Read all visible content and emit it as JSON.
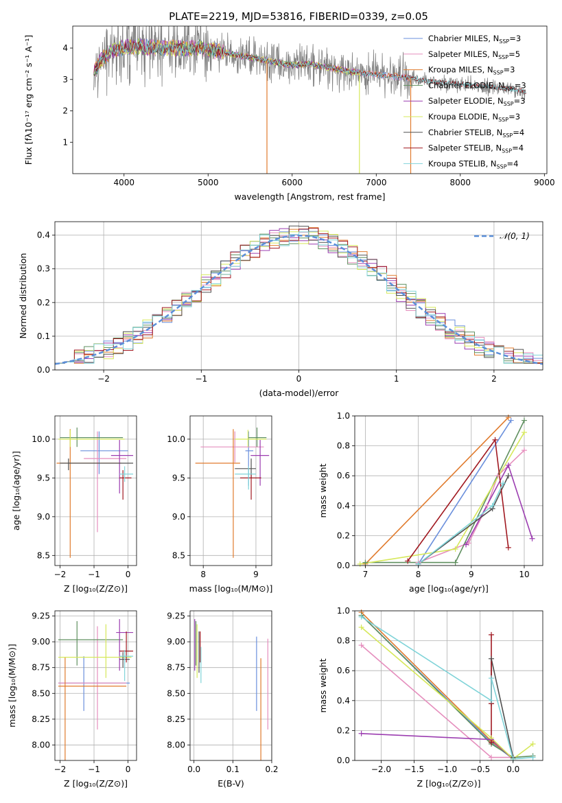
{
  "figure": {
    "title": "PLATE=2219, MJD=53816, FIBERID=0339, z=0.05"
  },
  "colors": {
    "Chabrier MILES": "#6a8fdc",
    "Salpeter MILES": "#e58ebd",
    "Kroupa MILES": "#e07a2c",
    "Chabrier ELODIE": "#5f8f5f",
    "Salpeter ELODIE": "#9b3cb0",
    "Kroupa ELODIE": "#d6e85a",
    "Chabrier STELIB": "#505050",
    "Salpeter STELIB": "#a01820",
    "Kroupa STELIB": "#7fd3d8",
    "data": "#808080"
  },
  "chart_data": [
    {
      "type": "line",
      "panel": "spectrum",
      "xlabel": "wavelength [Angstrom, rest frame]",
      "ylabel": "Flux [fλ10⁻¹⁷ erg cm⁻² s⁻¹ A⁻¹]",
      "xlim": [
        3390,
        9030
      ],
      "ylim": [
        0.0,
        4.7
      ],
      "xticks": [
        4000,
        5000,
        6000,
        7000,
        8000,
        9000
      ],
      "yticks": [
        1,
        2,
        3,
        4
      ],
      "grid": false,
      "legend_placement": "upper right",
      "legend": [
        {
          "name": "Chabrier MILES",
          "nssp": "3"
        },
        {
          "name": "Salpeter MILES",
          "nssp": "5"
        },
        {
          "name": "Kroupa MILES",
          "nssp": "3"
        },
        {
          "name": "Chabrier ELODIE",
          "nssp": "3"
        },
        {
          "name": "Salpeter ELODIE",
          "nssp": "3"
        },
        {
          "name": "Kroupa ELODIE",
          "nssp": "3"
        },
        {
          "name": "Chabrier STELIB",
          "nssp": "4"
        },
        {
          "name": "Salpeter STELIB",
          "nssp": "4"
        },
        {
          "name": "Kroupa STELIB",
          "nssp": "4"
        }
      ],
      "continuum": {
        "x": [
          3650,
          3700,
          3800,
          3900,
          4000,
          4100,
          4200,
          4300,
          4500,
          4700,
          4900,
          5000,
          5200,
          5400,
          5600,
          5800,
          6000,
          6200,
          6400,
          6600,
          6800,
          7000,
          7200,
          7400,
          7600,
          7800,
          8000,
          8200,
          8400,
          8600,
          8800
        ],
        "y": [
          3.25,
          3.55,
          3.8,
          3.95,
          4.0,
          4.05,
          4.05,
          4.0,
          4.0,
          4.0,
          4.0,
          3.95,
          3.85,
          3.75,
          3.65,
          3.55,
          3.45,
          3.5,
          3.4,
          3.3,
          3.2,
          3.15,
          3.1,
          3.05,
          2.95,
          2.9,
          2.85,
          2.8,
          2.75,
          2.7,
          2.6
        ]
      },
      "data_extent": [
        3640,
        8770
      ],
      "model_extents": {
        "MILES": [
          3640,
          7410
        ],
        "ELODIE": [
          3640,
          6800
        ],
        "STELIB": [
          3640,
          8780
        ]
      }
    },
    {
      "type": "bar",
      "panel": "residual histogram",
      "xlabel": "(data-model)/error",
      "ylabel": "Normed distribution",
      "xlim": [
        -2.5,
        2.5
      ],
      "ylim": [
        0.0,
        0.44
      ],
      "xticks": [
        -2,
        -1,
        0,
        1,
        2
      ],
      "yticks": [
        0.0,
        0.1,
        0.2,
        0.3,
        0.4
      ],
      "grid": true,
      "legend_placement": "upper right",
      "legend_label": "𝒩(0, 1)",
      "bin_width": 0.1,
      "gaussian": {
        "mu": 0,
        "sigma": 1
      }
    },
    {
      "type": "scatter",
      "panel": "age vs Z",
      "xlabel": "Z [log₁₀(Z/Z⊙)]",
      "ylabel": "age  [log₁₀(age/yr)]",
      "xlim": [
        -2.15,
        0.25
      ],
      "ylim": [
        8.37,
        10.3
      ],
      "xticks": [
        -2,
        -1,
        0
      ],
      "yticks": [
        8.5,
        9.0,
        9.5,
        10.0
      ],
      "points": [
        {
          "s": "Chabrier MILES",
          "x": -0.85,
          "y": 9.85,
          "xe": [
            -1.4,
            0.0
          ],
          "ye": [
            9.55,
            10.1
          ]
        },
        {
          "s": "Salpeter MILES",
          "x": -0.9,
          "y": 9.75,
          "xe": [
            -1.3,
            -0.05
          ],
          "ye": [
            8.8,
            10.1
          ]
        },
        {
          "s": "Kroupa MILES",
          "x": -1.7,
          "y": 9.69,
          "xe": [
            -2.1,
            -0.2
          ],
          "ye": [
            8.47,
            10.13
          ]
        },
        {
          "s": "Chabrier ELODIE",
          "x": -1.5,
          "y": 10.02,
          "xe": [
            -2.0,
            -0.15
          ],
          "ye": [
            9.9,
            10.15
          ]
        },
        {
          "s": "Salpeter ELODIE",
          "x": -0.25,
          "y": 9.79,
          "xe": [
            -0.5,
            0.15
          ],
          "ye": [
            9.3,
            9.99
          ]
        },
        {
          "s": "Kroupa ELODIE",
          "x": -1.7,
          "y": 10.0,
          "xe": [
            -2.05,
            -0.1
          ],
          "ye": [
            9.9,
            10.12
          ]
        },
        {
          "s": "Chabrier STELIB",
          "x": -1.75,
          "y": 9.69,
          "xe": [
            -2.0,
            0.15
          ],
          "ye": [
            9.6,
            9.75
          ]
        },
        {
          "s": "Salpeter STELIB",
          "x": -0.15,
          "y": 9.5,
          "xe": [
            -0.25,
            0.1
          ],
          "ye": [
            9.22,
            9.6
          ]
        },
        {
          "s": "Kroupa STELIB",
          "x": -0.1,
          "y": 9.55,
          "xe": [
            -0.25,
            0.15
          ],
          "ye": [
            9.45,
            9.65
          ]
        }
      ]
    },
    {
      "type": "scatter",
      "panel": "age vs mass",
      "xlabel": "mass [log₁₀(M/M⊙)]",
      "ylabel": "",
      "xlim": [
        7.75,
        9.3
      ],
      "ylim": [
        8.37,
        10.3
      ],
      "xticks": [
        8,
        9
      ],
      "yticks": [
        8.5,
        9.0,
        9.5,
        10.0
      ],
      "points": [
        {
          "s": "Chabrier MILES",
          "x": 8.86,
          "y": 9.85,
          "xe": [
            8.8,
            8.95
          ],
          "ye": [
            9.4,
            10.1
          ]
        },
        {
          "s": "Salpeter MILES",
          "x": 8.6,
          "y": 9.9,
          "xe": [
            7.95,
            9.15
          ],
          "ye": [
            9.7,
            10.1
          ]
        },
        {
          "s": "Kroupa MILES",
          "x": 8.57,
          "y": 9.69,
          "xe": [
            7.85,
            8.7
          ],
          "ye": [
            8.47,
            10.13
          ]
        },
        {
          "s": "Chabrier ELODIE",
          "x": 9.02,
          "y": 10.02,
          "xe": [
            8.85,
            9.2
          ],
          "ye": [
            9.9,
            10.15
          ]
        },
        {
          "s": "Salpeter ELODIE",
          "x": 9.08,
          "y": 9.79,
          "xe": [
            8.9,
            9.25
          ],
          "ye": [
            9.4,
            9.99
          ]
        },
        {
          "s": "Kroupa ELODIE",
          "x": 8.85,
          "y": 10.0,
          "xe": [
            8.6,
            9.2
          ],
          "ye": [
            9.9,
            10.12
          ]
        },
        {
          "s": "Chabrier STELIB",
          "x": 8.91,
          "y": 9.62,
          "xe": [
            8.6,
            9.0
          ],
          "ye": [
            9.5,
            9.75
          ]
        },
        {
          "s": "Salpeter STELIB",
          "x": 8.91,
          "y": 9.5,
          "xe": [
            8.7,
            9.1
          ],
          "ye": [
            9.22,
            9.55
          ]
        },
        {
          "s": "Kroupa STELIB",
          "x": 8.86,
          "y": 9.55,
          "xe": [
            8.6,
            9.0
          ],
          "ye": [
            9.35,
            9.65
          ]
        }
      ]
    },
    {
      "type": "line",
      "panel": "mass weight vs age",
      "xlabel": "age  [log₁₀(age/yr)]",
      "ylabel": "mass weight",
      "xlim": [
        6.8,
        10.35
      ],
      "ylim": [
        0.0,
        1.0
      ],
      "xticks": [
        7,
        8,
        9,
        10
      ],
      "yticks": [
        0.0,
        0.2,
        0.4,
        0.6,
        0.8,
        1.0
      ],
      "grid": true,
      "series": [
        {
          "name": "Chabrier MILES",
          "x": [
            8.0,
            9.75
          ],
          "y": [
            0.01,
            0.97
          ]
        },
        {
          "name": "Salpeter MILES",
          "x": [
            8.0,
            8.95,
            9.3,
            9.5,
            10.0
          ],
          "y": [
            0.02,
            0.15,
            0.4,
            0.6,
            0.77
          ]
        },
        {
          "name": "Kroupa MILES",
          "x": [
            7.0,
            9.7
          ],
          "y": [
            0.01,
            0.99
          ]
        },
        {
          "name": "Chabrier ELODIE",
          "x": [
            7.0,
            8.7,
            10.0
          ],
          "y": [
            0.02,
            0.02,
            0.97
          ]
        },
        {
          "name": "Salpeter ELODIE",
          "x": [
            8.9,
            9.7,
            10.15
          ],
          "y": [
            0.14,
            0.67,
            0.18
          ]
        },
        {
          "name": "Kroupa ELODIE",
          "x": [
            6.9,
            8.7,
            10.0
          ],
          "y": [
            0.01,
            0.11,
            0.89
          ]
        },
        {
          "name": "Chabrier STELIB",
          "x": [
            8.0,
            9.4,
            9.7
          ],
          "y": [
            0.01,
            0.38,
            0.6
          ]
        },
        {
          "name": "Salpeter STELIB",
          "x": [
            7.8,
            9.45,
            9.7
          ],
          "y": [
            0.03,
            0.84,
            0.12
          ]
        },
        {
          "name": "Kroupa STELIB",
          "x": [
            8.0,
            9.4,
            9.6
          ],
          "y": [
            0.01,
            0.4,
            0.55
          ]
        }
      ]
    },
    {
      "type": "scatter",
      "panel": "mass vs Z",
      "xlabel": "Z [log₁₀(Z/Z⊙)]",
      "ylabel": "mass [log₁₀(M/M⊙)]",
      "xlim": [
        -2.15,
        0.25
      ],
      "ylim": [
        7.85,
        9.3
      ],
      "xticks": [
        -2,
        -1,
        0
      ],
      "yticks": [
        8.0,
        8.25,
        8.5,
        8.75,
        9.0,
        9.25
      ],
      "points": [
        {
          "s": "Chabrier MILES",
          "x": -1.3,
          "y": 8.6,
          "xe": [
            -2.05,
            0.05
          ],
          "ye": [
            8.33,
            8.86
          ]
        },
        {
          "s": "Salpeter MILES",
          "x": -0.9,
          "y": 8.6,
          "xe": [
            -2.05,
            -0.05
          ],
          "ye": [
            8.15,
            9.15
          ]
        },
        {
          "s": "Kroupa MILES",
          "x": -1.85,
          "y": 8.57,
          "xe": [
            -2.05,
            -0.05
          ],
          "ye": [
            7.85,
            8.85
          ]
        },
        {
          "s": "Chabrier ELODIE",
          "x": -1.5,
          "y": 9.02,
          "xe": [
            -2.05,
            -0.15
          ],
          "ye": [
            8.77,
            9.2
          ]
        },
        {
          "s": "Salpeter ELODIE",
          "x": -0.25,
          "y": 9.09,
          "xe": [
            -0.35,
            0.15
          ],
          "ye": [
            8.72,
            9.22
          ]
        },
        {
          "s": "Kroupa ELODIE",
          "x": -0.65,
          "y": 8.85,
          "xe": [
            -2.05,
            0.1
          ],
          "ye": [
            8.65,
            9.17
          ]
        },
        {
          "s": "Chabrier STELIB",
          "x": -0.15,
          "y": 8.83,
          "xe": [
            -0.25,
            0.05
          ],
          "ye": [
            8.75,
            8.9
          ]
        },
        {
          "s": "Salpeter STELIB",
          "x": -0.05,
          "y": 8.91,
          "xe": [
            -0.25,
            0.15
          ],
          "ye": [
            8.8,
            9.1
          ]
        },
        {
          "s": "Kroupa STELIB",
          "x": -0.1,
          "y": 8.86,
          "xe": [
            -0.25,
            0.15
          ],
          "ye": [
            8.62,
            8.92
          ]
        }
      ]
    },
    {
      "type": "scatter",
      "panel": "mass vs E(B-V)",
      "xlabel": "E(B-V)",
      "ylabel": "",
      "xlim": [
        -0.01,
        0.2
      ],
      "ylim": [
        7.85,
        9.3
      ],
      "xticks": [
        0.0,
        0.1,
        0.2
      ],
      "yticks": [
        8.0,
        8.25,
        8.5,
        8.75,
        9.0,
        9.25
      ],
      "points": [
        {
          "s": "Chabrier MILES",
          "x": 0.161,
          "y": 8.6,
          "ye": [
            8.33,
            9.05
          ]
        },
        {
          "s": "Salpeter MILES",
          "x": 0.19,
          "y": 8.6,
          "ye": [
            8.15,
            9.03
          ]
        },
        {
          "s": "Kroupa MILES",
          "x": 0.172,
          "y": 8.57,
          "ye": [
            7.85,
            8.84
          ]
        },
        {
          "s": "Chabrier ELODIE",
          "x": 0.005,
          "y": 9.02,
          "ye": [
            8.77,
            9.2
          ]
        },
        {
          "s": "Salpeter ELODIE",
          "x": 0.002,
          "y": 9.09,
          "ye": [
            8.72,
            9.22
          ]
        },
        {
          "s": "Kroupa ELODIE",
          "x": 0.008,
          "y": 8.85,
          "ye": [
            8.65,
            9.17
          ]
        },
        {
          "s": "Chabrier STELIB",
          "x": 0.013,
          "y": 8.83,
          "ye": [
            8.7,
            9.1
          ]
        },
        {
          "s": "Salpeter STELIB",
          "x": 0.016,
          "y": 8.91,
          "ye": [
            8.8,
            9.1
          ]
        },
        {
          "s": "Kroupa STELIB",
          "x": 0.018,
          "y": 8.86,
          "ye": [
            8.6,
            8.95
          ]
        }
      ]
    },
    {
      "type": "line",
      "panel": "mass weight vs Z",
      "xlabel": "Z [log₁₀(Z/Z⊙)]",
      "ylabel": "mass weight",
      "xlim": [
        -2.4,
        0.45
      ],
      "ylim": [
        0.0,
        1.0
      ],
      "xticks": [
        -2.0,
        -1.5,
        -1.0,
        -0.5,
        0.0
      ],
      "yticks": [
        0.0,
        0.2,
        0.4,
        0.6,
        0.8,
        1.0
      ],
      "grid": true,
      "series": [
        {
          "name": "Chabrier MILES",
          "x": [
            -2.3,
            -0.33,
            0.0
          ],
          "y": [
            0.97,
            0.12,
            0.01
          ]
        },
        {
          "name": "Salpeter MILES",
          "x": [
            -2.3,
            -0.33,
            0.0
          ],
          "y": [
            0.77,
            0.02,
            0.02
          ]
        },
        {
          "name": "Kroupa MILES",
          "x": [
            -2.3,
            -0.33,
            0.0
          ],
          "y": [
            0.99,
            0.13,
            0.01
          ]
        },
        {
          "name": "Chabrier ELODIE",
          "x": [
            -2.3,
            -0.33,
            0.0,
            0.3
          ],
          "y": [
            0.97,
            0.11,
            0.02,
            0.03
          ]
        },
        {
          "name": "Salpeter ELODIE",
          "x": [
            -2.3,
            -0.33,
            0.0
          ],
          "y": [
            0.18,
            0.14,
            0.01
          ]
        },
        {
          "name": "Kroupa ELODIE",
          "x": [
            -2.3,
            -0.33,
            0.0,
            0.3
          ],
          "y": [
            0.89,
            0.15,
            0.01,
            0.11
          ]
        },
        {
          "name": "Chabrier STELIB",
          "x": [
            -0.33,
            -0.33,
            0.0
          ],
          "y": [
            0.38,
            0.68,
            0.02
          ]
        },
        {
          "name": "Salpeter STELIB",
          "x": [
            -0.33,
            -0.33,
            -0.33
          ],
          "y": [
            0.84,
            0.38,
            0.12
          ]
        },
        {
          "name": "Kroupa STELIB",
          "x": [
            -2.3,
            -0.33,
            -0.33,
            0.0,
            0.3
          ],
          "y": [
            0.96,
            0.4,
            0.55,
            0.01,
            0.02
          ]
        }
      ]
    }
  ]
}
